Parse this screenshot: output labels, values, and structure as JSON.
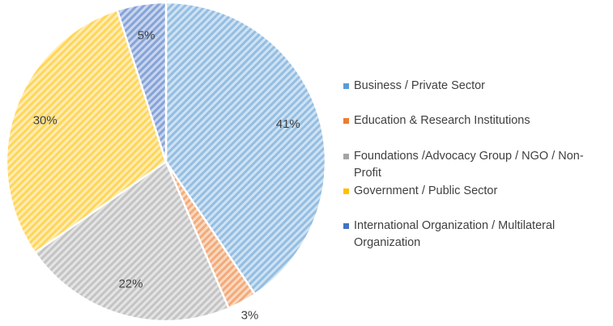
{
  "chart_data": {
    "type": "pie",
    "categories": [
      "Business / Private Sector",
      "Education & Research Institutions",
      "Foundations /Advocacy Group / NGO / Non-Profit",
      "Government / Public Sector",
      "International Organization / Multilateral Organization"
    ],
    "values": [
      41,
      3,
      22,
      30,
      5
    ],
    "value_labels": [
      "41%",
      "3%",
      "22%",
      "30%",
      "5%"
    ],
    "colors": [
      "#5b9bd5",
      "#ed7d31",
      "#a5a5a5",
      "#ffc000",
      "#4472c4"
    ],
    "legend": "right"
  }
}
